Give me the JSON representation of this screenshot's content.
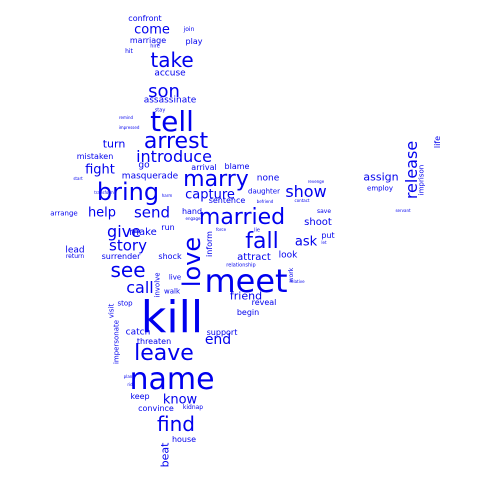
{
  "color": "#0000ee",
  "words": [
    {
      "text": "kill",
      "size": 5
    },
    {
      "text": "meet",
      "size": 5
    },
    {
      "text": "name",
      "size": 5
    },
    {
      "text": "love",
      "size": 5
    },
    {
      "text": "tell",
      "size": 5
    },
    {
      "text": "bring",
      "size": 4
    },
    {
      "text": "marry",
      "size": 4
    },
    {
      "text": "married",
      "size": 4
    },
    {
      "text": "fall",
      "size": 4
    },
    {
      "text": "leave",
      "size": 4
    },
    {
      "text": "arrest",
      "size": 4
    },
    {
      "text": "see",
      "size": 4
    },
    {
      "text": "find",
      "size": 4
    },
    {
      "text": "take",
      "size": 4
    },
    {
      "text": "son",
      "size": 3
    },
    {
      "text": "release",
      "size": 3
    },
    {
      "text": "introduce",
      "size": 3
    },
    {
      "text": "show",
      "size": 3
    },
    {
      "text": "give",
      "size": 3
    },
    {
      "text": "call",
      "size": 3
    },
    {
      "text": "send",
      "size": 3
    },
    {
      "text": "story",
      "size": 3
    },
    {
      "text": "capture",
      "size": 3
    },
    {
      "text": "fight",
      "size": 2
    },
    {
      "text": "help",
      "size": 2
    },
    {
      "text": "end",
      "size": 2
    },
    {
      "text": "know",
      "size": 2
    },
    {
      "text": "come",
      "size": 2
    },
    {
      "text": "ask",
      "size": 2
    },
    {
      "text": "turn",
      "size": 2
    },
    {
      "text": "assign",
      "size": 2
    },
    {
      "text": "beat",
      "size": 2
    },
    {
      "text": "friend",
      "size": 2
    },
    {
      "text": "make",
      "size": 2
    },
    {
      "text": "attract",
      "size": 2
    },
    {
      "text": "shoot",
      "size": 2
    },
    {
      "text": "accuse",
      "size": 1
    },
    {
      "text": "assassinate",
      "size": 1
    },
    {
      "text": "go",
      "size": 1
    },
    {
      "text": "masquerade",
      "size": 1
    },
    {
      "text": "mistaken",
      "size": 1
    },
    {
      "text": "blame",
      "size": 1
    },
    {
      "text": "arrival",
      "size": 1
    },
    {
      "text": "sentence",
      "size": 1
    },
    {
      "text": "none",
      "size": 1
    },
    {
      "text": "daughter",
      "size": 1
    },
    {
      "text": "hand",
      "size": 1
    },
    {
      "text": "run",
      "size": 1
    },
    {
      "text": "inform",
      "size": 1
    },
    {
      "text": "lead",
      "size": 1
    },
    {
      "text": "surrender",
      "size": 1
    },
    {
      "text": "shock",
      "size": 1
    },
    {
      "text": "look",
      "size": 1
    },
    {
      "text": "put",
      "size": 1
    },
    {
      "text": "reveal",
      "size": 1
    },
    {
      "text": "begin",
      "size": 1
    },
    {
      "text": "catch",
      "size": 1
    },
    {
      "text": "threaten",
      "size": 1
    },
    {
      "text": "support",
      "size": 1
    },
    {
      "text": "keep",
      "size": 1
    },
    {
      "text": "convince",
      "size": 1
    },
    {
      "text": "house",
      "size": 1
    },
    {
      "text": "play",
      "size": 1
    },
    {
      "text": "marriage",
      "size": 1
    },
    {
      "text": "confront",
      "size": 1
    },
    {
      "text": "life",
      "size": 1
    },
    {
      "text": "imprison",
      "size": 1
    },
    {
      "text": "employ",
      "size": 1
    },
    {
      "text": "arrange",
      "size": 1
    },
    {
      "text": "live",
      "size": 1
    },
    {
      "text": "walk",
      "size": 1
    },
    {
      "text": "involve",
      "size": 1
    },
    {
      "text": "impersonate",
      "size": 1
    },
    {
      "text": "visit",
      "size": 1
    },
    {
      "text": "stop",
      "size": 1
    },
    {
      "text": "kidnap",
      "size": 1
    },
    {
      "text": "work",
      "size": 1
    },
    {
      "text": "save",
      "size": 1
    },
    {
      "text": "join",
      "size": 0
    },
    {
      "text": "hire",
      "size": 0
    },
    {
      "text": "hit",
      "size": 0
    },
    {
      "text": "stay",
      "size": 0
    },
    {
      "text": "remind",
      "size": 0
    },
    {
      "text": "impressed",
      "size": 0
    },
    {
      "text": "start",
      "size": 0
    },
    {
      "text": "transform",
      "size": 0
    },
    {
      "text": "harm",
      "size": 0
    },
    {
      "text": "engage",
      "size": 0
    },
    {
      "text": "force",
      "size": 0
    },
    {
      "text": "lie",
      "size": 0
    },
    {
      "text": "befriend",
      "size": 0
    },
    {
      "text": "revenge",
      "size": 0
    },
    {
      "text": "contact",
      "size": 0
    },
    {
      "text": "servant",
      "size": 0
    },
    {
      "text": "return",
      "size": 0
    },
    {
      "text": "relationship",
      "size": 0
    },
    {
      "text": "relative",
      "size": 0
    },
    {
      "text": "plan",
      "size": 0
    },
    {
      "text": "rid",
      "size": 0
    },
    {
      "text": "let",
      "size": 0
    }
  ]
}
